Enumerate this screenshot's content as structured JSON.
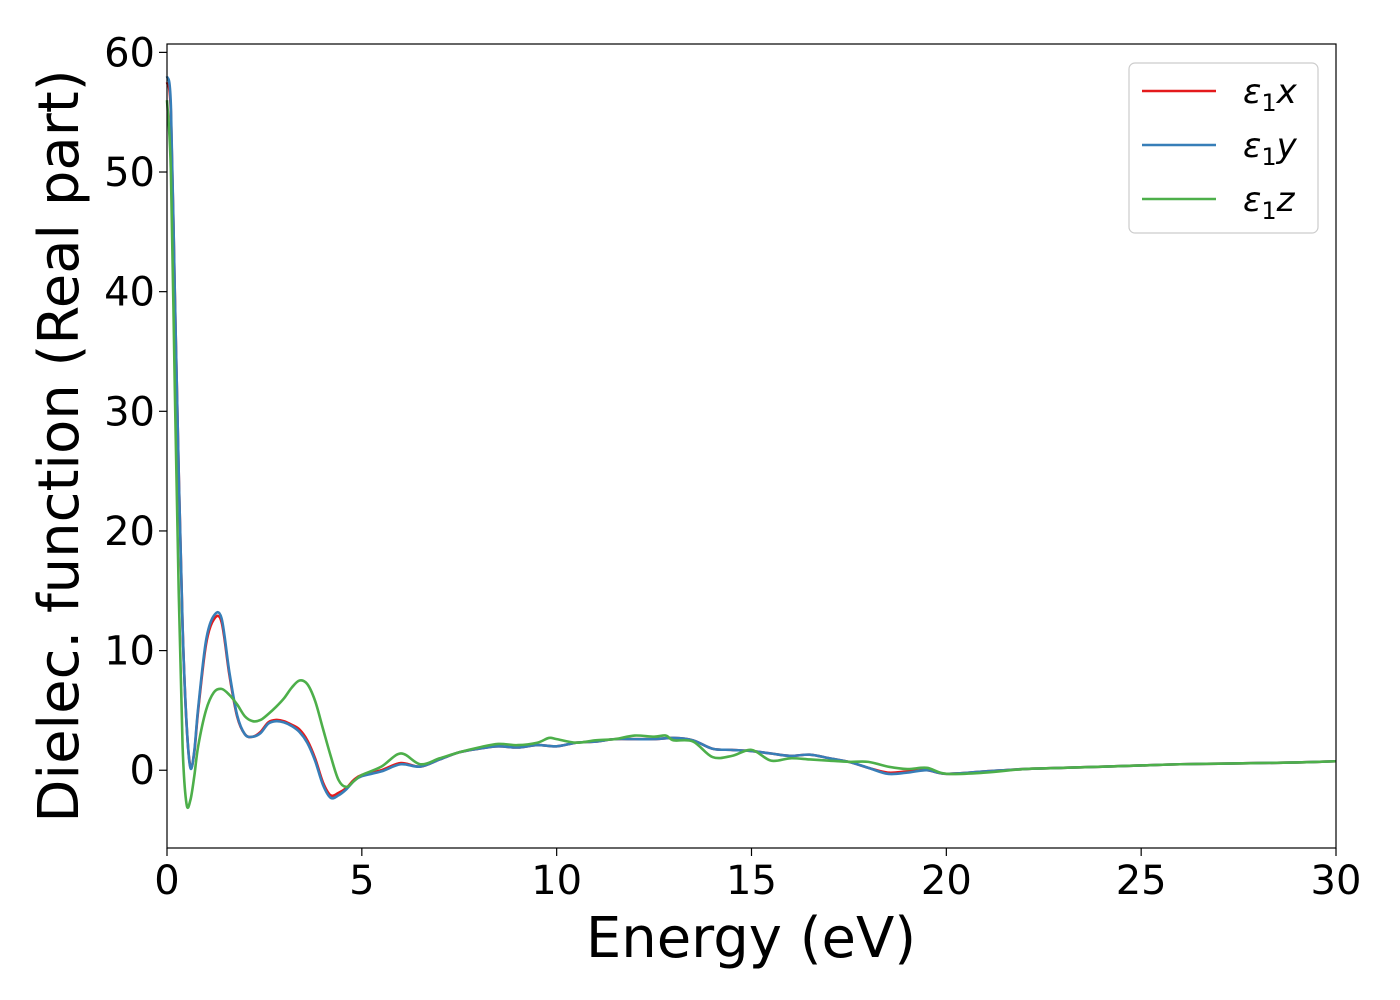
{
  "chart_data": {
    "type": "line",
    "title": "",
    "xlabel": "Energy (eV)",
    "ylabel": "Dielec. function (Real part)",
    "xlim": [
      0,
      30
    ],
    "ylim": [
      -6.5,
      60.7
    ],
    "xticks": [
      0,
      5,
      10,
      15,
      20,
      25,
      30
    ],
    "yticks": [
      0,
      10,
      20,
      30,
      40,
      50,
      60
    ],
    "grid": false,
    "legend_position": "top-right",
    "series": [
      {
        "name": "ε₁x",
        "legend_main": "ε",
        "legend_sub": "1",
        "legend_var": "x",
        "color": "#e41a1c",
        "x": [
          0,
          0.1,
          0.2,
          0.3,
          0.4,
          0.5,
          0.6,
          0.7,
          0.8,
          1.0,
          1.2,
          1.4,
          1.6,
          1.8,
          2.0,
          2.2,
          2.4,
          2.6,
          2.8,
          3.0,
          3.2,
          3.4,
          3.6,
          3.8,
          4.0,
          4.2,
          4.4,
          4.6,
          4.8,
          5.0,
          5.5,
          6.0,
          6.5,
          7.0,
          7.5,
          8.0,
          8.5,
          9.0,
          9.5,
          10.0,
          10.5,
          11.0,
          11.5,
          12.0,
          12.5,
          13.0,
          13.5,
          14.0,
          14.5,
          15.0,
          15.5,
          16.0,
          16.5,
          17.0,
          17.5,
          18.0,
          18.5,
          19.0,
          19.5,
          20.0,
          21.0,
          22.0,
          23.0,
          24.0,
          25.0,
          26.0,
          27.0,
          28.0,
          29.0,
          30.0
        ],
        "y": [
          57.5,
          55,
          40,
          25,
          12,
          4,
          0.3,
          1.5,
          5,
          10.5,
          12.6,
          12.4,
          8,
          4.5,
          3,
          2.8,
          3.2,
          4,
          4.2,
          4.1,
          3.8,
          3.4,
          2.5,
          1,
          -1,
          -2.1,
          -1.9,
          -1.5,
          -0.8,
          -0.4,
          0,
          0.6,
          0.3,
          0.9,
          1.5,
          1.8,
          2,
          1.9,
          2.1,
          2,
          2.3,
          2.4,
          2.6,
          2.6,
          2.6,
          2.7,
          2.5,
          1.8,
          1.7,
          1.6,
          1.4,
          1.2,
          1.3,
          1,
          0.7,
          0.2,
          -0.2,
          -0.1,
          0,
          -0.3,
          -0.1,
          0.1,
          0.2,
          0.3,
          0.4,
          0.5,
          0.55,
          0.6,
          0.65,
          0.75
        ]
      },
      {
        "name": "ε₁y",
        "legend_main": "ε",
        "legend_sub": "1",
        "legend_var": "y",
        "color": "#377eb8",
        "x": [
          0,
          0.1,
          0.2,
          0.3,
          0.4,
          0.5,
          0.6,
          0.7,
          0.8,
          1.0,
          1.2,
          1.4,
          1.6,
          1.8,
          2.0,
          2.2,
          2.4,
          2.6,
          2.8,
          3.0,
          3.2,
          3.4,
          3.6,
          3.8,
          4.0,
          4.2,
          4.4,
          4.6,
          4.8,
          5.0,
          5.5,
          6.0,
          6.5,
          7.0,
          7.5,
          8.0,
          8.5,
          9.0,
          9.5,
          10.0,
          10.5,
          11.0,
          11.5,
          12.0,
          12.5,
          13.0,
          13.5,
          14.0,
          14.5,
          15.0,
          15.5,
          16.0,
          16.5,
          17.0,
          17.5,
          18.0,
          18.5,
          19.0,
          19.5,
          20.0,
          21.0,
          22.0,
          23.0,
          24.0,
          25.0,
          26.0,
          27.0,
          28.0,
          29.0,
          30.0
        ],
        "y": [
          58,
          55.5,
          40,
          25,
          12,
          4,
          0.2,
          1.6,
          5.2,
          10.8,
          12.9,
          12.7,
          8.2,
          4.6,
          3,
          2.8,
          3.1,
          3.9,
          4.1,
          4,
          3.7,
          3.2,
          2.3,
          0.8,
          -1.2,
          -2.3,
          -2.1,
          -1.6,
          -0.9,
          -0.5,
          -0.1,
          0.5,
          0.3,
          0.9,
          1.5,
          1.8,
          2,
          1.9,
          2.1,
          2,
          2.3,
          2.4,
          2.6,
          2.6,
          2.6,
          2.7,
          2.5,
          1.8,
          1.7,
          1.6,
          1.4,
          1.2,
          1.3,
          1,
          0.7,
          0.2,
          -0.3,
          -0.2,
          0,
          -0.3,
          -0.1,
          0.1,
          0.2,
          0.3,
          0.4,
          0.5,
          0.55,
          0.6,
          0.65,
          0.75
        ]
      },
      {
        "name": "ε₁z",
        "legend_main": "ε",
        "legend_sub": "1",
        "legend_var": "z",
        "color": "#4daf4a",
        "x": [
          0,
          0.1,
          0.2,
          0.3,
          0.4,
          0.5,
          0.6,
          0.7,
          0.8,
          1.0,
          1.2,
          1.4,
          1.6,
          1.8,
          2.0,
          2.2,
          2.4,
          2.6,
          2.8,
          3.0,
          3.2,
          3.4,
          3.6,
          3.8,
          4.0,
          4.2,
          4.4,
          4.6,
          4.8,
          5.0,
          5.5,
          6.0,
          6.5,
          7.0,
          7.5,
          8.0,
          8.5,
          9.0,
          9.5,
          9.8,
          10.0,
          10.5,
          11.0,
          11.5,
          12.0,
          12.5,
          12.8,
          13.0,
          13.5,
          14.0,
          14.5,
          15.0,
          15.5,
          16.0,
          16.5,
          17.0,
          17.5,
          18.0,
          18.5,
          19.0,
          19.5,
          20.0,
          21.0,
          22.0,
          23.0,
          24.0,
          25.0,
          26.0,
          27.0,
          28.0,
          29.0,
          30.0
        ],
        "y": [
          56,
          50,
          32,
          15,
          2,
          -2.8,
          -2.5,
          -0.5,
          2,
          5,
          6.5,
          6.8,
          6.3,
          5.5,
          4.5,
          4.1,
          4.2,
          4.7,
          5.3,
          6,
          6.9,
          7.5,
          7.2,
          5.8,
          3.5,
          1.2,
          -0.8,
          -1.4,
          -0.9,
          -0.4,
          0.3,
          1.4,
          0.5,
          1,
          1.5,
          1.9,
          2.2,
          2.1,
          2.3,
          2.7,
          2.6,
          2.3,
          2.5,
          2.6,
          2.9,
          2.8,
          2.9,
          2.5,
          2.4,
          1.1,
          1.2,
          1.7,
          0.8,
          1,
          0.9,
          0.8,
          0.7,
          0.7,
          0.3,
          0.1,
          0.2,
          -0.3,
          -0.2,
          0.1,
          0.2,
          0.3,
          0.4,
          0.5,
          0.55,
          0.6,
          0.65,
          0.75
        ]
      }
    ]
  }
}
